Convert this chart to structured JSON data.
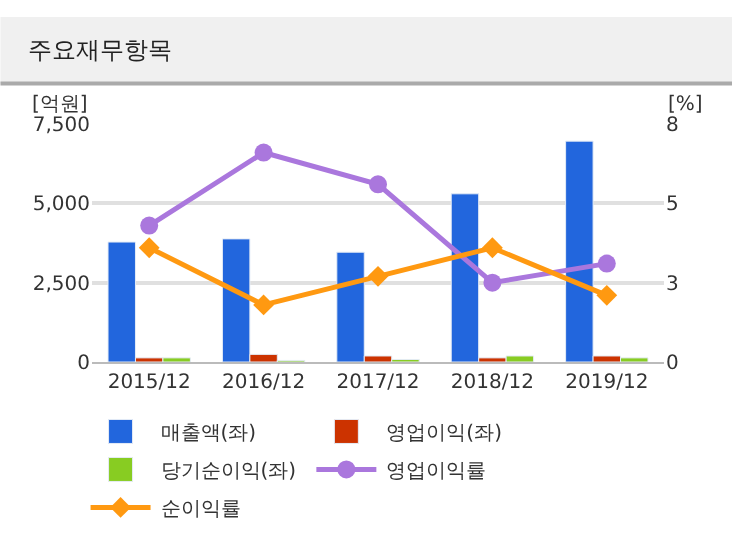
{
  "chart_data": {
    "type": "bar",
    "title": "주요재무항목",
    "ylabel": "[억원]",
    "y2label": "[%]",
    "categories": [
      "2015/12",
      "2016/12",
      "2017/12",
      "2018/12",
      "2019/12"
    ],
    "series": [
      {
        "name": "매출액(좌)",
        "color": "#2266dd",
        "values": [
          3780,
          3880,
          3460,
          5300,
          6960
        ]
      },
      {
        "name": "영업이익(좌)",
        "color": "#cc3300",
        "values": [
          130,
          240,
          190,
          130,
          190
        ]
      },
      {
        "name": "당기순이익(좌)",
        "color": "#88cc22",
        "values": [
          130,
          50,
          80,
          190,
          130
        ]
      },
      {
        "name": "영업이익률",
        "type": "line",
        "axis": "y2",
        "marker": "circle",
        "color": "#aa77dd",
        "values": [
          4.3,
          6.6,
          5.6,
          2.5,
          3.1
        ]
      },
      {
        "name": "순이익률",
        "type": "line",
        "axis": "y2",
        "marker": "diamond",
        "color": "#ff9911",
        "values": [
          3.6,
          1.8,
          2.7,
          3.6,
          2.1
        ]
      }
    ],
    "ylim": [
      0,
      7500
    ],
    "yticks": [
      {
        "value": 0,
        "label": "0"
      },
      {
        "value": 2500,
        "label": "2,500"
      },
      {
        "value": 5000,
        "label": "5,000"
      },
      {
        "value": 7500,
        "label": "7,500"
      }
    ],
    "y2lim": [
      0,
      7.5
    ],
    "y2ticks": [
      0,
      {
        "value": 2.5,
        "label": "3"
      },
      5,
      {
        "value": 7.5,
        "label": "8"
      }
    ],
    "grid": "y",
    "legend": "bottom"
  }
}
